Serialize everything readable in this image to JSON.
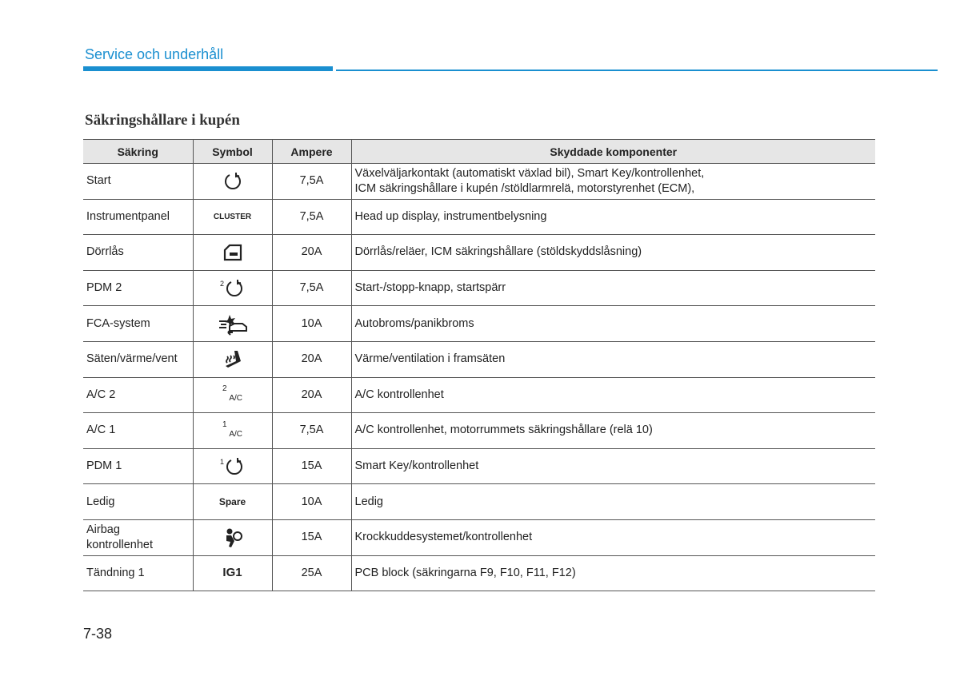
{
  "header": {
    "title": "Service och underhåll"
  },
  "section": {
    "title": "Säkringshållare i kupén"
  },
  "table": {
    "columns": [
      "Säkring",
      "Symbol",
      "Ampere",
      "Skyddade komponenter"
    ],
    "rows": [
      {
        "fuse": [
          "Start"
        ],
        "ampere": "7,5A",
        "components": [
          "Växelväljarkontakt (automatiskt växlad bil), Smart Key/kontrollenhet,",
          "ICM säkringshållare i kupén /stöldlarmrelä, motorstyrenhet (ECM),"
        ]
      },
      {
        "fuse": [
          "Instrumentpanel"
        ],
        "symbol": [
          "CLUSTER"
        ],
        "ampere": "7,5A",
        "components": [
          "Head up display, instrumentbelysning"
        ]
      },
      {
        "fuse": [
          "Dörrlås"
        ],
        "ampere": "20A",
        "components": [
          "Dörrlås/reläer, ICM säkringshållare (stöldskyddslåsning)"
        ]
      },
      {
        "fuse": [
          "PDM 2"
        ],
        "symbol": [
          "2"
        ],
        "ampere": "7,5A",
        "components": [
          "Start-/stopp-knapp, startspärr"
        ]
      },
      {
        "fuse": [
          "FCA-system"
        ],
        "ampere": "10A",
        "components": [
          "Autobroms/panikbroms"
        ]
      },
      {
        "fuse": [
          "Säten/värme/vent"
        ],
        "ampere": "20A",
        "components": [
          "Värme/ventilation i framsäten"
        ]
      },
      {
        "fuse": [
          "A/C 2"
        ],
        "symbol": [
          "2",
          "A/C"
        ],
        "ampere": "20A",
        "components": [
          "A/C kontrollenhet"
        ]
      },
      {
        "fuse": [
          "A/C 1"
        ],
        "symbol": [
          "1",
          "A/C"
        ],
        "ampere": "7,5A",
        "components": [
          "A/C kontrollenhet, motorrummets säkringshållare (relä 10)"
        ]
      },
      {
        "fuse": [
          "PDM 1"
        ],
        "symbol": [
          "1"
        ],
        "ampere": "15A",
        "components": [
          "Smart Key/kontrollenhet"
        ]
      },
      {
        "fuse": [
          "Ledig"
        ],
        "symbol": [
          "Spare"
        ],
        "ampere": "10A",
        "components": [
          "Ledig"
        ]
      },
      {
        "fuse": [
          "Airbag",
          "kontrollenhet"
        ],
        "ampere": "15A",
        "components": [
          "Krockkuddesystemet/kontrollenhet"
        ]
      },
      {
        "fuse": [
          "Tändning 1"
        ],
        "symbol": [
          "IG1"
        ],
        "ampere": "25A",
        "components": [
          "PCB block (säkringarna F9, F10, F11, F12)"
        ]
      }
    ]
  },
  "footer": {
    "page": "7-38"
  }
}
